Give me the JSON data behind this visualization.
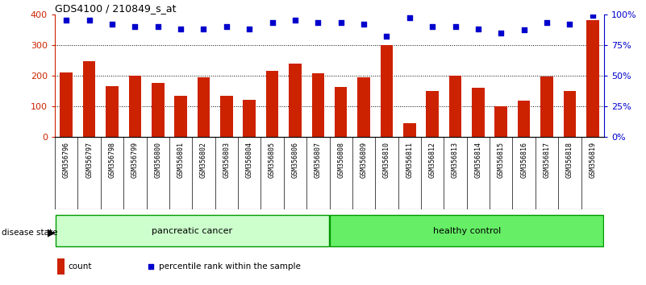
{
  "title": "GDS4100 / 210849_s_at",
  "samples": [
    "GSM356796",
    "GSM356797",
    "GSM356798",
    "GSM356799",
    "GSM356800",
    "GSM356801",
    "GSM356802",
    "GSM356803",
    "GSM356804",
    "GSM356805",
    "GSM356806",
    "GSM356807",
    "GSM356808",
    "GSM356809",
    "GSM356810",
    "GSM356811",
    "GSM356812",
    "GSM356813",
    "GSM356814",
    "GSM356815",
    "GSM356816",
    "GSM356817",
    "GSM356818",
    "GSM356819"
  ],
  "counts": [
    210,
    248,
    165,
    200,
    175,
    133,
    195,
    133,
    120,
    215,
    238,
    208,
    162,
    195,
    300,
    45,
    150,
    200,
    160,
    100,
    117,
    198,
    150,
    380
  ],
  "percentiles": [
    95,
    95,
    92,
    90,
    90,
    88,
    88,
    90,
    88,
    93,
    95,
    93,
    93,
    92,
    82,
    97,
    90,
    90,
    88,
    85,
    87,
    93,
    92,
    99
  ],
  "groups": [
    "pancreatic cancer",
    "pancreatic cancer",
    "pancreatic cancer",
    "pancreatic cancer",
    "pancreatic cancer",
    "pancreatic cancer",
    "pancreatic cancer",
    "pancreatic cancer",
    "pancreatic cancer",
    "pancreatic cancer",
    "pancreatic cancer",
    "pancreatic cancer",
    "healthy control",
    "healthy control",
    "healthy control",
    "healthy control",
    "healthy control",
    "healthy control",
    "healthy control",
    "healthy control",
    "healthy control",
    "healthy control",
    "healthy control",
    "healthy control"
  ],
  "bar_color": "#cc2200",
  "dot_color": "#0000cc",
  "pancreatic_color": "#ccffcc",
  "healthy_color": "#66ee66",
  "group_border_color": "#009900",
  "tick_bg_color": "#d0d0d0",
  "ylim_left": [
    0,
    400
  ],
  "ylim_right": [
    0,
    100
  ],
  "yticks_left": [
    0,
    100,
    200,
    300,
    400
  ],
  "yticks_right": [
    0,
    25,
    50,
    75,
    100
  ],
  "legend_count_label": "count",
  "legend_pct_label": "percentile rank within the sample",
  "disease_state_label": "disease state"
}
